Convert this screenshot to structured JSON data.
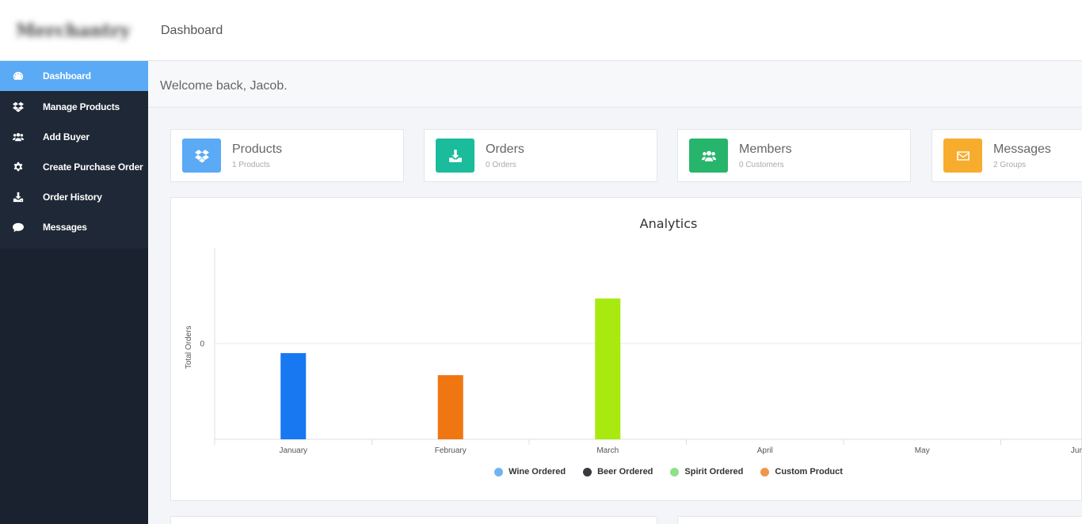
{
  "brand": {
    "name": "Merchantry"
  },
  "header": {
    "breadcrumb": "Dashboard"
  },
  "sidebar": {
    "items": [
      {
        "label": "Dashboard",
        "icon": "dashboard-icon",
        "active": true
      },
      {
        "label": "Manage Products",
        "icon": "dropbox-icon"
      },
      {
        "label": "Add Buyer",
        "icon": "users-icon"
      },
      {
        "label": "Create Purchase Order",
        "icon": "gear-icon"
      },
      {
        "label": "Order History",
        "icon": "download-icon"
      },
      {
        "label": "Messages",
        "icon": "chat-icon"
      }
    ]
  },
  "welcome": "Welcome back, Jacob.",
  "cards": [
    {
      "title": "Products",
      "sub": "1 Products",
      "color": "#5aaaf5",
      "icon": "dropbox-icon"
    },
    {
      "title": "Orders",
      "sub": "0 Orders",
      "color": "#1abc9c",
      "icon": "download-icon"
    },
    {
      "title": "Members",
      "sub": "0 Customers",
      "color": "#26b56b",
      "icon": "users-icon"
    },
    {
      "title": "Messages",
      "sub": "2 Groups",
      "color": "#f8ac2e",
      "icon": "envelope-icon"
    }
  ],
  "chart_data": {
    "type": "bar",
    "title": "Analytics",
    "ylabel": "Total Orders",
    "xlabel": "",
    "categories": [
      "January",
      "February",
      "March",
      "April",
      "May",
      "June"
    ],
    "y_ticks": [
      0
    ],
    "ylim": [
      -1,
      1
    ],
    "series": [
      {
        "name": "Wine Ordered",
        "color": "#1778f2",
        "values": [
          -0.1,
          null,
          null,
          null,
          null,
          null
        ]
      },
      {
        "name": "Beer Ordered",
        "color": "#3a3a3e",
        "values": [
          null,
          null,
          null,
          null,
          null,
          null
        ]
      },
      {
        "name": "Spirit Ordered",
        "color": "#a8ea0f",
        "values": [
          null,
          null,
          0.47,
          null,
          null,
          null
        ]
      },
      {
        "name": "Custom Product",
        "color": "#f07612",
        "values": [
          null,
          -0.33,
          null,
          null,
          null,
          null
        ]
      }
    ],
    "legend": [
      {
        "name": "Wine Ordered",
        "color": "#6fb4ef"
      },
      {
        "name": "Beer Ordered",
        "color": "#3a3a3e"
      },
      {
        "name": "Spirit Ordered",
        "color": "#8fe08a"
      },
      {
        "name": "Custom Product",
        "color": "#f0954a"
      }
    ]
  }
}
